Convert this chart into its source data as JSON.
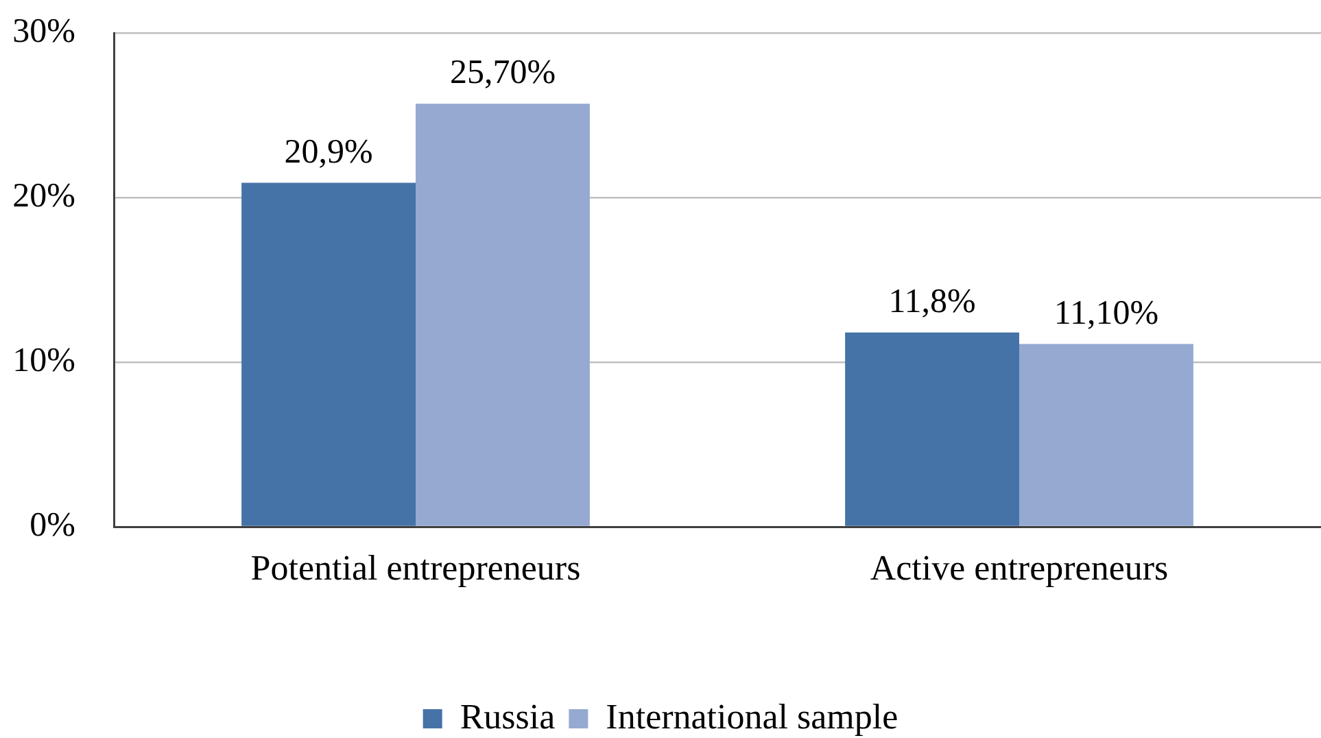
{
  "chart_data": {
    "type": "bar",
    "categories": [
      "Potential entrepreneurs",
      "Active entrepreneurs"
    ],
    "series": [
      {
        "name": "Russia",
        "color": "#4573a7",
        "values": [
          20.9,
          11.8
        ],
        "value_labels": [
          "20,9%",
          "11,8%"
        ]
      },
      {
        "name": "International sample",
        "color": "#95a9d1",
        "values": [
          25.7,
          11.1
        ],
        "value_labels": [
          "25,70%",
          "11,10%"
        ]
      }
    ],
    "ylim": [
      0,
      30
    ],
    "yticks": [
      {
        "value": 0,
        "label": "0%"
      },
      {
        "value": 10,
        "label": "10%"
      },
      {
        "value": 20,
        "label": "20%"
      },
      {
        "value": 30,
        "label": "30%"
      }
    ],
    "grid": "y",
    "legend": "bottom"
  }
}
